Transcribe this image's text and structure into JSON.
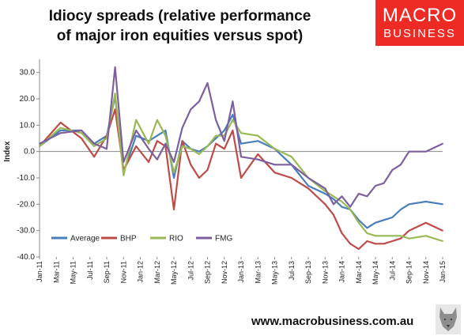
{
  "title_lines": [
    "Idiocy spreads (relative performance",
    "of major iron equities versus spot)"
  ],
  "logo": {
    "line1": "MACRO",
    "line2": "BUSINESS",
    "color": "#ee2a24"
  },
  "footer_url": "www.macrobusiness.com.au",
  "chart_data": {
    "type": "line",
    "title": "Idiocy spreads (relative performance of major iron equities versus spot)",
    "ylabel": "Index",
    "xlabel": "",
    "ylim": [
      -40,
      35
    ],
    "yticks": [
      30,
      20,
      10,
      0,
      -10,
      -20,
      -30,
      -40
    ],
    "ytick_labels": [
      "30.0",
      "20.0",
      "10.0",
      "0.0",
      "-10.0",
      "-20.0",
      "-30.0",
      "-40.0"
    ],
    "xticks": [
      "Jan-11",
      "Mar-11",
      "May-11",
      "Jul-11",
      "Sep-11",
      "Nov-11",
      "Jan-12",
      "Mar-12",
      "May-12",
      "Jul-12",
      "Sep-12",
      "Nov-12",
      "Jan-13",
      "Mar-13",
      "May-13",
      "Jul-13",
      "Sep-13",
      "Nov-13",
      "Jan-14",
      "Mar-14",
      "May-14",
      "Jul-14",
      "Sep-14",
      "Nov-14",
      "Jan-15"
    ],
    "x_month_index": [
      0,
      2.5,
      5,
      6.5,
      8,
      9,
      10,
      11.5,
      13,
      14,
      15,
      16,
      17,
      18,
      19,
      20,
      21,
      22,
      23,
      24,
      26,
      28,
      30,
      32,
      34,
      35,
      36,
      37,
      38,
      39,
      40,
      41,
      42,
      43,
      44,
      46,
      48
    ],
    "grid": false,
    "legend_position": "bottom-left",
    "series": [
      {
        "name": "Average",
        "color": "#4a7ebb",
        "values": [
          2,
          8,
          8,
          3,
          6,
          21,
          -8,
          6,
          4,
          6,
          8,
          -10,
          4,
          1,
          0,
          2,
          5,
          8,
          14,
          3,
          4,
          1,
          -5,
          -13,
          -16,
          -18,
          -21,
          -22,
          -26,
          -29,
          -27,
          -26,
          -25,
          -22,
          -20,
          -19,
          -20
        ]
      },
      {
        "name": "BHP",
        "color": "#be4b48",
        "values": [
          2,
          11,
          5,
          -2,
          6,
          16,
          -7,
          2,
          -4,
          4,
          2,
          -22,
          4,
          -5,
          -10,
          -7,
          3,
          1,
          8,
          -10,
          -1,
          -8,
          -10,
          -14,
          -20,
          -24,
          -31,
          -35,
          -37,
          -34,
          -35,
          -35,
          -34,
          -33,
          -30,
          -27,
          -30
        ]
      },
      {
        "name": "RIO",
        "color": "#98b954",
        "values": [
          2,
          9,
          7,
          2,
          5,
          22,
          -9,
          12,
          3,
          12,
          6,
          -8,
          2,
          1,
          -1,
          2,
          6,
          6,
          12,
          7,
          6,
          1,
          -2,
          -10,
          -15,
          -17,
          -19,
          -22,
          -27,
          -31,
          -32,
          -32,
          -32,
          -32,
          -33,
          -32,
          -34
        ]
      },
      {
        "name": "FMG",
        "color": "#7d5fa0",
        "values": [
          3,
          7,
          8,
          3,
          1,
          32,
          -4,
          8,
          1,
          -3,
          3,
          -4,
          9,
          16,
          19,
          26,
          12,
          4,
          19,
          -2,
          -3,
          -5,
          -5,
          -10,
          -14,
          -20,
          -17,
          -21,
          -16,
          -17,
          -13,
          -12,
          -7,
          -5,
          0,
          0,
          3
        ]
      }
    ]
  }
}
